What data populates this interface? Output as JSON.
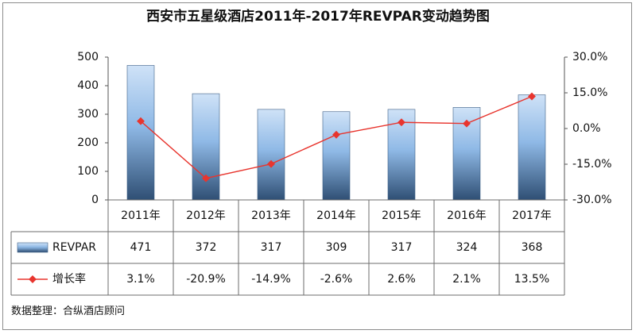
{
  "chart_data": {
    "type": "bar",
    "title": "西安市五星级酒店2011年-2017年REVPAR变动趋势图",
    "categories": [
      "2011年",
      "2012年",
      "2013年",
      "2014年",
      "2015年",
      "2016年",
      "2017年"
    ],
    "series": [
      {
        "name": "REVPAR",
        "type": "bar",
        "axis": "left",
        "values": [
          471,
          372,
          317,
          309,
          317,
          324,
          368
        ],
        "labels": [
          "471",
          "372",
          "317",
          "309",
          "317",
          "324",
          "368"
        ]
      },
      {
        "name": "增长率",
        "type": "line",
        "axis": "right",
        "values": [
          3.1,
          -20.9,
          -14.9,
          -2.6,
          2.6,
          2.1,
          13.5
        ],
        "labels": [
          "3.1%",
          "-20.9%",
          "-14.9%",
          "-2.6%",
          "2.6%",
          "2.1%",
          "13.5%"
        ]
      }
    ],
    "y_left": {
      "ylim": [
        0,
        500
      ],
      "ticks": [
        "0",
        "100",
        "200",
        "300",
        "400",
        "500"
      ]
    },
    "y_right": {
      "ylim": [
        -30,
        30
      ],
      "ticks": [
        "-30.0%",
        "-15.0%",
        "0.0%",
        "15.0%",
        "30.0%"
      ]
    },
    "data_table": true,
    "grid": false
  },
  "source_note": "数据整理：合纵酒店顾问",
  "colors": {
    "bar_top": "#cfe2f7",
    "bar_mid": "#8fb9e6",
    "bar_bottom": "#2f4f74",
    "line": "#e8352e",
    "marker": "#e8352e",
    "axis": "#555555",
    "table_border": "#6e6e6e"
  }
}
